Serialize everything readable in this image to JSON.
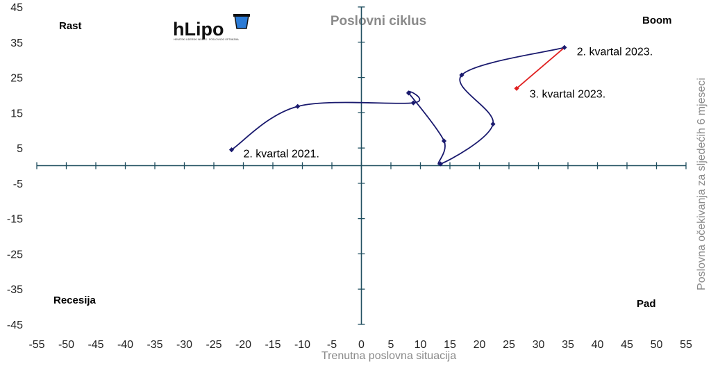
{
  "chart_data": {
    "type": "scatter",
    "title": "Poslovni ciklus",
    "xlabel": "Trenutna poslovna situacija",
    "ylabel": "Poslovna očekivanja za sljedećih 6 mjeseci",
    "xlim": [
      -55,
      55
    ],
    "ylim": [
      -45,
      45
    ],
    "x_ticks": [
      "-55",
      "-50",
      "-45",
      "-40",
      "-35",
      "-30",
      "-25",
      "-20",
      "-15",
      "-10",
      "-5",
      "0",
      "5",
      "10",
      "15",
      "20",
      "25",
      "30",
      "35",
      "40",
      "45",
      "50",
      "55"
    ],
    "y_ticks": [
      "45",
      "35",
      "25",
      "15",
      "5",
      "-5",
      "-15",
      "-25",
      "-35",
      "-45"
    ],
    "grid": false,
    "quadrant_labels": {
      "top_left": "Rast",
      "top_right": "Boom",
      "bottom_left": "Recesija",
      "bottom_right": "Pad"
    },
    "series": [
      {
        "color": "#1a1a6e",
        "points": [
          {
            "x": -22.0,
            "y": 4.5
          },
          {
            "x": -10.8,
            "y": 16.8
          },
          {
            "x": 8.8,
            "y": 17.8
          },
          {
            "x": 8.0,
            "y": 20.6
          },
          {
            "x": 14.0,
            "y": 7.0
          },
          {
            "x": 13.4,
            "y": 0.5
          },
          {
            "x": 22.3,
            "y": 11.8
          },
          {
            "x": 17.0,
            "y": 25.7
          },
          {
            "x": 34.4,
            "y": 33.5
          }
        ]
      },
      {
        "color": "#e02020",
        "points": [
          {
            "x": 34.4,
            "y": 33.5
          },
          {
            "x": 26.3,
            "y": 21.9
          }
        ]
      }
    ],
    "annotations": [
      {
        "text": "2. kvartal 2021.",
        "x": -20.0,
        "y": 3.5
      },
      {
        "text": "2. kvartal 2023.",
        "x": 36.5,
        "y": 32.5
      },
      {
        "text": "3. kvartal 2023.",
        "x": 28.5,
        "y": 20.5
      }
    ]
  },
  "logo": {
    "text": "hLipo",
    "subtitle": "HRVATSKI LIDERSKI INDEKS · POSLOVNOG OPTIMIZMA"
  }
}
